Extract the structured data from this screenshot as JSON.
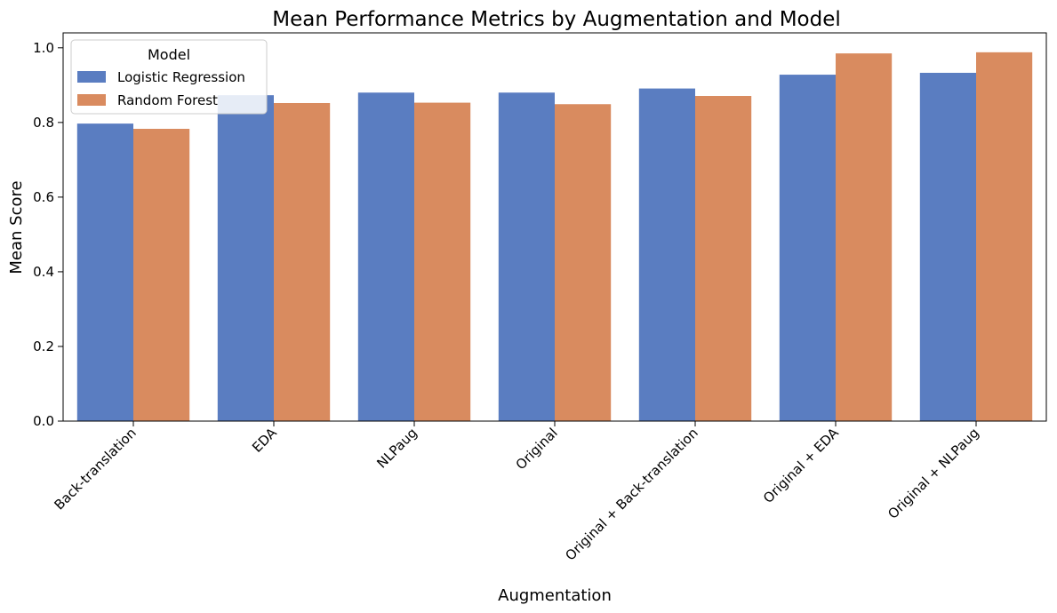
{
  "chart_data": {
    "type": "bar",
    "title": "Mean Performance Metrics by Augmentation and Model",
    "xlabel": "Augmentation",
    "ylabel": "Mean Score",
    "ylim": [
      0,
      1.04
    ],
    "yticks": [
      0.0,
      0.2,
      0.4,
      0.6,
      0.8,
      1.0
    ],
    "categories": [
      "Back-translation",
      "EDA",
      "NLPaug",
      "Original",
      "Original + Back-translation",
      "Original + EDA",
      "Original + NLPaug"
    ],
    "series": [
      {
        "name": "Logistic Regression",
        "color": "#5a7dc1",
        "values": [
          0.797,
          0.873,
          0.88,
          0.88,
          0.891,
          0.928,
          0.933
        ]
      },
      {
        "name": "Random Forest",
        "color": "#d98b5f",
        "values": [
          0.783,
          0.852,
          0.853,
          0.849,
          0.871,
          0.985,
          0.988
        ]
      }
    ],
    "legend": {
      "title": "Model",
      "position": "top-left"
    },
    "grid": false
  }
}
